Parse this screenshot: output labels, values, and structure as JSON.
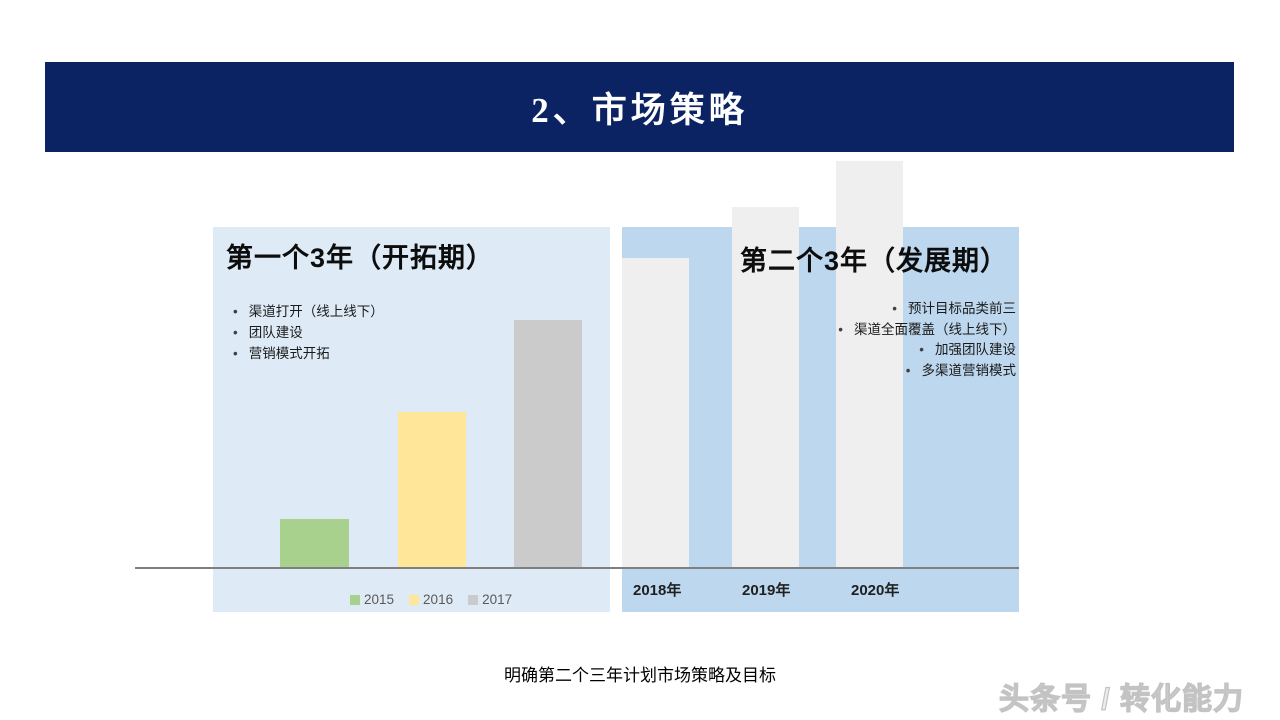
{
  "header": {
    "title": "2、市场策略"
  },
  "left_panel": {
    "title": "第一个3年（开拓期）",
    "bullets": [
      "渠道打开（线上线下）",
      "团队建设",
      "营销模式开拓"
    ],
    "legend": [
      {
        "label": "2015",
        "color": "#A9D18E"
      },
      {
        "label": "2016",
        "color": "#FFE699"
      },
      {
        "label": "2017",
        "color": "#CBCBCB"
      }
    ]
  },
  "right_panel": {
    "title": "第二个3年（发展期）",
    "bullets": [
      "预计目标品类前三",
      "渠道全面覆盖（线上线下）",
      "加强团队建设",
      "多渠道营销模式"
    ],
    "x_labels": [
      "2018年",
      "2019年",
      "2020年"
    ]
  },
  "footer": {
    "caption": "明确第二个三年计划市场策略及目标",
    "watermark": "头条号 / 转化能力"
  },
  "colors": {
    "banner_bg": "#0c2363",
    "banner_text": "#ffffff",
    "left_panel_bg": "#DEEBF7",
    "right_panel_bg": "#BDD7EE",
    "axis_line": "#7f7f7f",
    "legend_text": "#595959",
    "body_text": "#1a1a1a",
    "watermark_text": "#c3c3c3"
  },
  "chart_data": [
    {
      "type": "bar",
      "title": "第一个3年（开拓期）",
      "categories": [
        "2015",
        "2016",
        "2017"
      ],
      "values": [
        48,
        155,
        247
      ],
      "colors": [
        "#A9D18E",
        "#FFE699",
        "#CBCBCB"
      ],
      "units": "relative bar height in px (no value axis shown)",
      "xlabel": "",
      "ylabel": "",
      "grid": false,
      "legend_position": "bottom"
    },
    {
      "type": "bar",
      "title": "第二个3年（发展期）",
      "categories": [
        "2018年",
        "2019年",
        "2020年"
      ],
      "values": [
        309,
        360,
        406
      ],
      "colors": [
        "#EFEFEF",
        "#EFEFEF",
        "#EFEFEF"
      ],
      "units": "relative bar height in px (no value axis shown)",
      "xlabel": "",
      "ylabel": "",
      "grid": false,
      "legend_position": "none"
    }
  ]
}
